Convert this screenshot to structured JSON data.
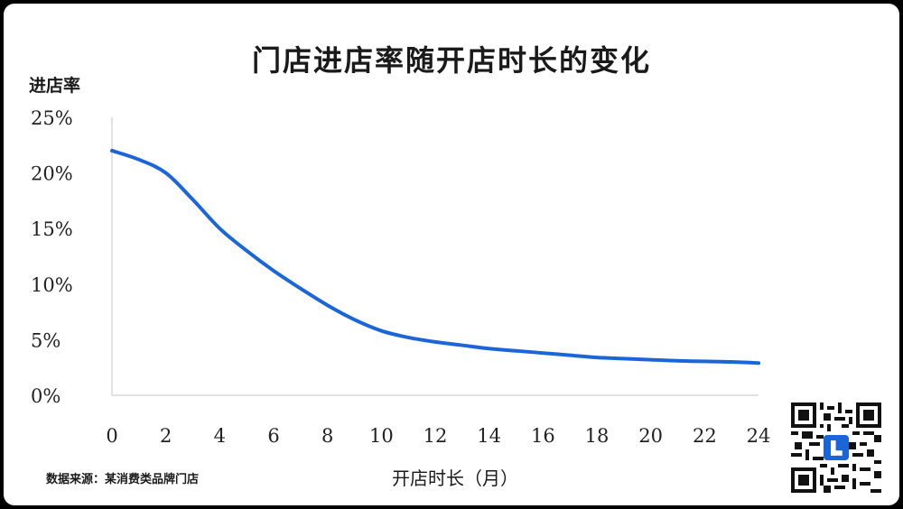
{
  "chart_data": {
    "type": "line",
    "title": "门店进店率随开店时长的变化",
    "ylabel": "进店率",
    "xlabel": "开店时长（月）",
    "x": [
      0,
      1,
      2,
      3,
      4,
      5,
      6,
      7,
      8,
      9,
      10,
      11,
      12,
      13,
      14,
      15,
      16,
      17,
      18,
      19,
      20,
      21,
      22,
      23,
      24
    ],
    "series": [
      {
        "values": [
          0.22,
          0.212,
          0.2,
          0.176,
          0.15,
          0.13,
          0.112,
          0.096,
          0.081,
          0.068,
          0.058,
          0.052,
          0.048,
          0.045,
          0.042,
          0.04,
          0.038,
          0.036,
          0.034,
          0.033,
          0.032,
          0.031,
          0.0305,
          0.03,
          0.029
        ],
        "color": "#1a66d9"
      }
    ],
    "xlim": [
      0,
      24
    ],
    "ylim": [
      0,
      0.25
    ],
    "x_ticks": [
      "0",
      "2",
      "4",
      "6",
      "8",
      "10",
      "12",
      "14",
      "16",
      "18",
      "20",
      "22",
      "24"
    ],
    "x_tick_values": [
      0,
      2,
      4,
      6,
      8,
      10,
      12,
      14,
      16,
      18,
      20,
      22,
      24
    ],
    "y_ticks": [
      "0%",
      "5%",
      "10%",
      "15%",
      "20%",
      "25%"
    ],
    "y_tick_values": [
      0,
      0.05,
      0.1,
      0.15,
      0.2,
      0.25
    ],
    "grid": false,
    "legend": "none"
  },
  "source": "数据来源：某消费类品牌门店",
  "qr_icon": "qr-code-icon"
}
